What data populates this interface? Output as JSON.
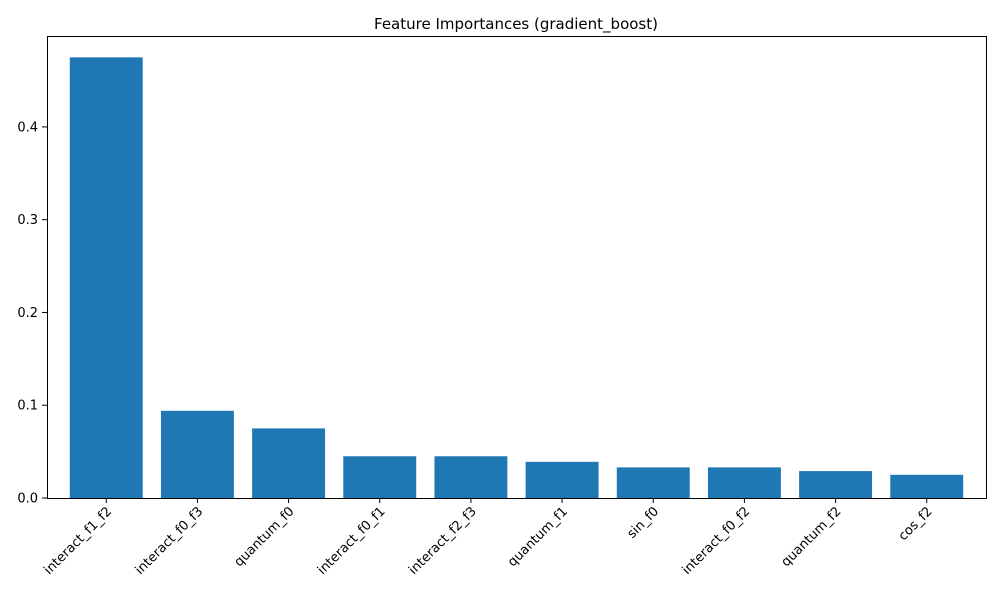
{
  "chart_data": {
    "type": "bar",
    "title": "Feature Importances (gradient_boost)",
    "xlabel": "",
    "ylabel": "",
    "categories": [
      "interact_f1_f2",
      "interact_f0_f3",
      "quantum_f0",
      "interact_f0_f1",
      "interact_f2_f3",
      "quantum_f1",
      "sin_f0",
      "interact_f0_f2",
      "quantum_f2",
      "cos_f2"
    ],
    "values": [
      0.475,
      0.094,
      0.075,
      0.045,
      0.045,
      0.039,
      0.033,
      0.033,
      0.029,
      0.025
    ],
    "ylim": [
      0,
      0.498
    ],
    "yticks": [
      0.0,
      0.1,
      0.2,
      0.3,
      0.4
    ],
    "ytick_labels": [
      "0.0",
      "0.1",
      "0.2",
      "0.3",
      "0.4"
    ],
    "bar_color": "#1f77b4",
    "grid": false,
    "legend": "none",
    "xtick_rotation_deg": 45
  }
}
